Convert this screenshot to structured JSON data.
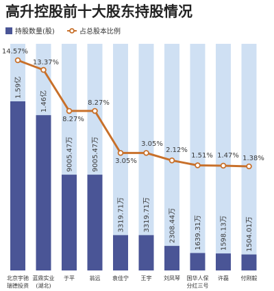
{
  "title": "高升控股前十大股东持股情况",
  "legend": {
    "bar_label": "持股数量(股)",
    "line_label": "占总股本比例"
  },
  "colors": {
    "bar_fill": "#4a5596",
    "bar_background": "#cfe0f3",
    "line": "#c8702a",
    "marker_fill": "#ffffff"
  },
  "chart_data": {
    "type": "bar",
    "title": "高升控股前十大股东持股情况",
    "categories": [
      [
        "北京宇驰",
        "瑞德投资"
      ],
      [
        "蓝鼎实业",
        "(湖北)"
      ],
      [
        "于平"
      ],
      [
        "翁远"
      ],
      [
        "袁佳宁"
      ],
      [
        "王宇"
      ],
      [
        "刘凤琴"
      ],
      [
        "国华人保",
        "分红三号"
      ],
      [
        "许磊"
      ],
      [
        "付刚毅"
      ]
    ],
    "series": [
      {
        "name": "持股数量(股)",
        "type": "bar",
        "values": [
          159000000,
          146000000,
          90054700,
          90054700,
          33197100,
          33197100,
          23084400,
          16393100,
          15981300,
          15040100
        ],
        "labels": [
          "1.59亿",
          "1.46亿",
          "9005.47万",
          "9005.47万",
          "3319.71万",
          "3319.71万",
          "2308.44万",
          "1639.31万",
          "1598.13万",
          "1504.01万"
        ]
      },
      {
        "name": "占总股本比例",
        "type": "line",
        "values": [
          14.57,
          13.37,
          8.27,
          8.27,
          3.05,
          3.05,
          2.12,
          1.51,
          1.47,
          1.38
        ],
        "labels": [
          "14.57%",
          "13.37%",
          "8.27%",
          "8.27%",
          "3.05%",
          "3.05%",
          "2.12%",
          "1.51%",
          "1.47%",
          "1.38%"
        ]
      }
    ],
    "legend_position": "top-left",
    "grid": false
  }
}
